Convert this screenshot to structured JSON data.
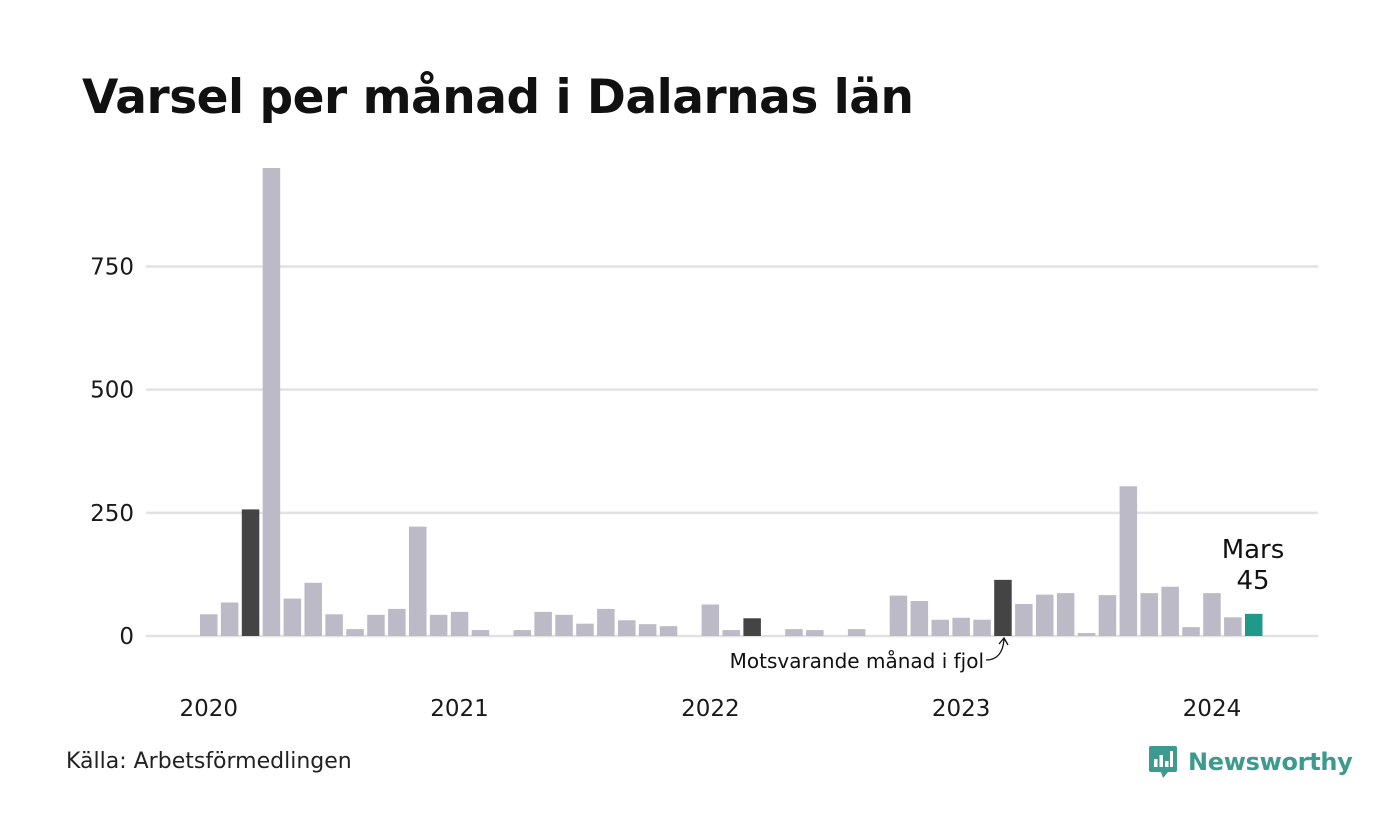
{
  "title": "Varsel per månad i Dalarnas län",
  "source": "Källa: Arbetsförmedlingen",
  "brand": {
    "name": "Newsworthy",
    "icon": "newsworthy-chart-icon",
    "color": "#3d9a8e"
  },
  "colors": {
    "bar": "#bcbac7",
    "highlight": "#444444",
    "current": "#1f9a8a",
    "grid": "#e2e2e2"
  },
  "chart_data": {
    "type": "bar",
    "ylim": [
      0,
      950
    ],
    "yticks": [
      0,
      250,
      500,
      750
    ],
    "ytick_labels": [
      "0",
      "250",
      "500",
      "750"
    ],
    "xtick_labels": [
      "2020",
      "2021",
      "2022",
      "2023",
      "2024"
    ],
    "xtick_month_index": [
      0,
      12,
      24,
      36,
      48
    ],
    "categories": [
      "2020-01",
      "2020-02",
      "2020-03",
      "2020-04",
      "2020-05",
      "2020-06",
      "2020-07",
      "2020-08",
      "2020-09",
      "2020-10",
      "2020-11",
      "2020-12",
      "2021-01",
      "2021-02",
      "2021-03",
      "2021-04",
      "2021-05",
      "2021-06",
      "2021-07",
      "2021-08",
      "2021-09",
      "2021-10",
      "2021-11",
      "2021-12",
      "2022-01",
      "2022-02",
      "2022-03",
      "2022-04",
      "2022-05",
      "2022-06",
      "2022-07",
      "2022-08",
      "2022-09",
      "2022-10",
      "2022-11",
      "2022-12",
      "2023-01",
      "2023-02",
      "2023-03",
      "2023-04",
      "2023-05",
      "2023-06",
      "2023-07",
      "2023-08",
      "2023-09",
      "2023-10",
      "2023-11",
      "2023-12",
      "2024-01",
      "2024-02",
      "2024-03"
    ],
    "values": [
      44,
      68,
      257,
      950,
      76,
      108,
      44,
      14,
      43,
      55,
      222,
      43,
      49,
      12,
      0,
      12,
      49,
      43,
      25,
      55,
      32,
      24,
      20,
      0,
      64,
      12,
      36,
      0,
      14,
      12,
      0,
      14,
      0,
      82,
      71,
      33,
      37,
      33,
      114,
      65,
      84,
      87,
      6,
      83,
      304,
      87,
      100,
      18,
      87,
      38,
      45
    ],
    "highlight_indices": [
      2,
      26,
      38
    ],
    "current_index": 50,
    "annotations": {
      "previous_year": "Motsvarande månad i fjol",
      "current_month": "Mars",
      "current_value": "45"
    },
    "grid": true
  }
}
